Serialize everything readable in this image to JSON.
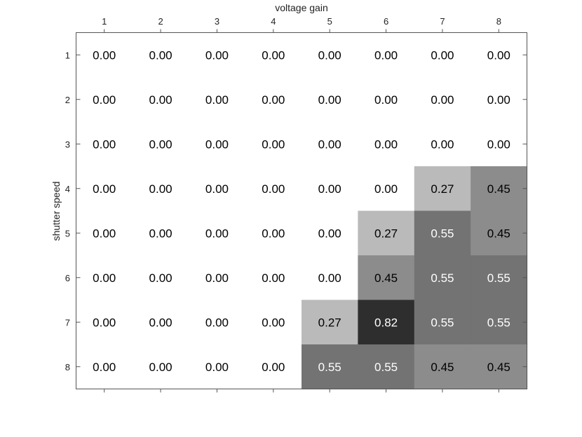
{
  "chart_data": {
    "type": "heatmap",
    "xlabel": "voltage gain",
    "ylabel": "shutter speed",
    "x_categories": [
      "1",
      "2",
      "3",
      "4",
      "5",
      "6",
      "7",
      "8"
    ],
    "y_categories": [
      "1",
      "2",
      "3",
      "4",
      "5",
      "6",
      "7",
      "8"
    ],
    "values": [
      [
        0.0,
        0.0,
        0.0,
        0.0,
        0.0,
        0.0,
        0.0,
        0.0
      ],
      [
        0.0,
        0.0,
        0.0,
        0.0,
        0.0,
        0.0,
        0.0,
        0.0
      ],
      [
        0.0,
        0.0,
        0.0,
        0.0,
        0.0,
        0.0,
        0.0,
        0.0
      ],
      [
        0.0,
        0.0,
        0.0,
        0.0,
        0.0,
        0.0,
        0.27,
        0.45
      ],
      [
        0.0,
        0.0,
        0.0,
        0.0,
        0.0,
        0.27,
        0.55,
        0.45
      ],
      [
        0.0,
        0.0,
        0.0,
        0.0,
        0.0,
        0.45,
        0.55,
        0.55
      ],
      [
        0.0,
        0.0,
        0.0,
        0.0,
        0.27,
        0.82,
        0.55,
        0.55
      ],
      [
        0.0,
        0.0,
        0.0,
        0.0,
        0.55,
        0.55,
        0.45,
        0.45
      ]
    ],
    "value_format": "2 decimals",
    "colormap": "grayscale (white = 0, black = 1)",
    "x_axis_position": "top",
    "grid": false,
    "colors": {
      "frame": "#555555",
      "text_dark": "#000000",
      "text_light": "#ffffff"
    }
  }
}
